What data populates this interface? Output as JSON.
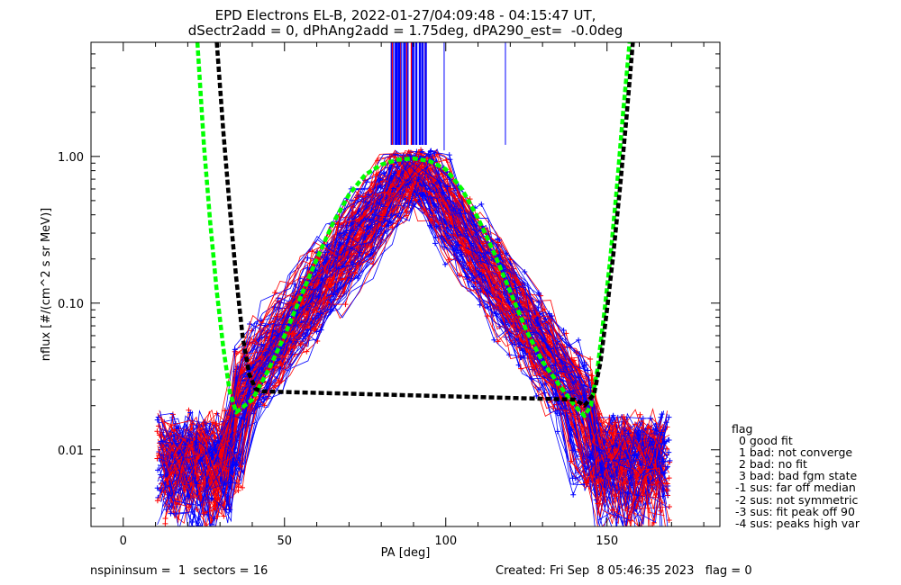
{
  "chart_data": {
    "type": "line",
    "title_line1": "EPD Electrons EL-B, 2022-01-27/04:09:48 - 04:15:47 UT,",
    "title_line2": "dSectr2add = 0, dPhAng2add = 1.75deg, dPA290_est=  -0.0deg",
    "xlabel": "PA [deg]",
    "ylabel": "nflux [#/(cm^2 s sr MeV)]",
    "xlim": [
      -10,
      185
    ],
    "ylim": [
      0.003,
      6.0
    ],
    "yscale": "log",
    "x_ticks": [
      "0",
      "50",
      "100",
      "150"
    ],
    "x_tick_values": [
      0,
      50,
      100,
      150
    ],
    "y_ticks": [
      "0.01",
      "0.10",
      "1.00"
    ],
    "y_tick_values": [
      0.01,
      0.1,
      1.0
    ],
    "series": [
      {
        "color": "#00ff00",
        "style": "dashed",
        "x": [
          23,
          25,
          27,
          29,
          31,
          33,
          35,
          40,
          45,
          50,
          55,
          60,
          65,
          70,
          75,
          80,
          85,
          90,
          95,
          100,
          105,
          110,
          115,
          120,
          125,
          130,
          135,
          140,
          143,
          145,
          147,
          149,
          151,
          153,
          155,
          157
        ],
        "y": [
          6.0,
          1.2,
          0.35,
          0.12,
          0.05,
          0.025,
          0.018,
          0.022,
          0.035,
          0.06,
          0.11,
          0.2,
          0.35,
          0.55,
          0.75,
          0.88,
          0.95,
          0.97,
          0.93,
          0.82,
          0.6,
          0.38,
          0.22,
          0.12,
          0.065,
          0.04,
          0.028,
          0.02,
          0.017,
          0.02,
          0.035,
          0.08,
          0.2,
          0.6,
          2.0,
          6.0
        ]
      },
      {
        "color": "#000000",
        "style": "dashed",
        "x": [
          29,
          31,
          33,
          35,
          37,
          39,
          41,
          43,
          140,
          143,
          146,
          148,
          150,
          152,
          154,
          156,
          158
        ],
        "y": [
          6.0,
          1.5,
          0.45,
          0.15,
          0.06,
          0.033,
          0.026,
          0.025,
          0.022,
          0.02,
          0.024,
          0.04,
          0.09,
          0.22,
          0.6,
          1.8,
          6.0
        ]
      }
    ]
  },
  "footer": {
    "left": "nspininsum =  1  sectors = 16",
    "right": "Created: Fri Sep  8 05:46:35 2023   flag = 0"
  },
  "legend": {
    "items": [
      "flag",
      "  0 good fit",
      "  1 bad: not converge",
      "  2 bad: no fit",
      "  3 bad: bad fgm state",
      " -1 sus: far off median",
      " -2 sus: not symmetric",
      " -3 sus: fit peak off 90",
      " -4 sus: peaks high var"
    ]
  },
  "colors": {
    "red": "#ff0000",
    "blue": "#0000ff",
    "green": "#00ff00",
    "black": "#000000"
  }
}
